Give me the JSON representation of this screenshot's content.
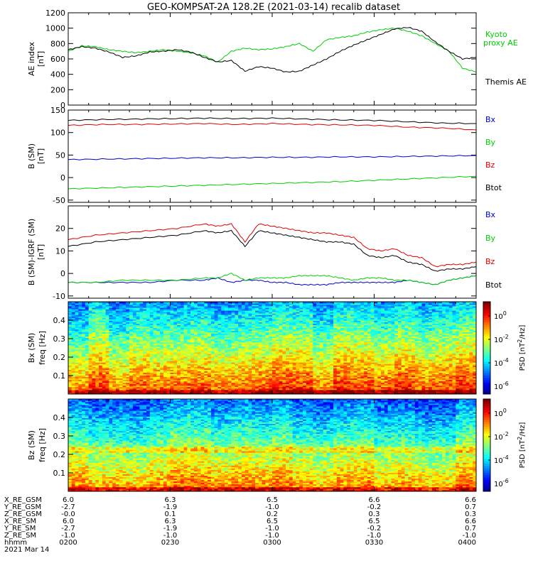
{
  "title": "GEO-KOMPSAT-2A 128.2E (2021-03-14) recalib dataset",
  "colors": {
    "black": "#000000",
    "red": "#e00000",
    "green": "#00d000",
    "blue": "#0000cc",
    "kyoto": "#00cc00"
  },
  "chart_data": [
    {
      "type": "line",
      "panel": "ae",
      "ylabel": "AE index",
      "yunit": "[nT]",
      "ylim": [
        0,
        1200
      ],
      "yticks": [
        0,
        200,
        400,
        600,
        800,
        1000,
        1200
      ],
      "x": [
        0,
        4,
        8,
        12,
        16,
        20,
        24,
        28,
        32,
        36,
        40,
        44,
        48,
        52,
        56,
        60,
        64,
        68,
        72,
        76,
        80,
        84,
        88,
        92,
        96,
        100,
        104,
        108,
        112,
        116,
        120
      ],
      "series": [
        {
          "name": "Kyoto proxy AE",
          "color": "#00cc00",
          "values": [
            700,
            770,
            760,
            720,
            700,
            680,
            700,
            720,
            700,
            680,
            640,
            560,
            700,
            740,
            720,
            730,
            760,
            800,
            700,
            850,
            880,
            900,
            950,
            980,
            1000,
            960,
            900,
            800,
            700,
            480,
            430
          ]
        },
        {
          "name": "Themis AE",
          "color": "#000000",
          "values": [
            720,
            760,
            740,
            690,
            620,
            640,
            690,
            700,
            720,
            690,
            620,
            560,
            580,
            440,
            500,
            480,
            430,
            440,
            520,
            600,
            700,
            780,
            850,
            920,
            990,
            1010,
            960,
            820,
            700,
            600,
            620
          ]
        }
      ]
    },
    {
      "type": "line",
      "panel": "b_sm",
      "ylabel": "B (SM)",
      "yunit": "[nT]",
      "ylim": [
        -55,
        150
      ],
      "yticks": [
        -50,
        0,
        50,
        100,
        150
      ],
      "x": [
        0,
        10,
        20,
        30,
        40,
        50,
        60,
        70,
        80,
        90,
        100,
        110,
        120
      ],
      "series": [
        {
          "name": "Bx",
          "color": "#0000cc",
          "values": [
            40,
            41,
            42,
            43,
            44,
            44,
            45,
            45,
            46,
            46,
            47,
            48,
            49
          ]
        },
        {
          "name": "By",
          "color": "#00d000",
          "values": [
            -25,
            -23,
            -21,
            -19,
            -17,
            -15,
            -13,
            -11,
            -9,
            -6,
            -3,
            0,
            3
          ]
        },
        {
          "name": "Bz",
          "color": "#e00000",
          "values": [
            116,
            118,
            118,
            119,
            120,
            118,
            120,
            118,
            117,
            116,
            112,
            110,
            106
          ]
        },
        {
          "name": "Btot",
          "color": "#000000",
          "values": [
            127,
            129,
            130,
            131,
            132,
            131,
            132,
            130,
            128,
            127,
            124,
            121,
            120
          ]
        }
      ]
    },
    {
      "type": "line",
      "panel": "b_igrf",
      "ylabel": "B (SM)-IGRF (SM)",
      "yunit": "[nT]",
      "ylim": [
        -11,
        30
      ],
      "yticks": [
        -10,
        0,
        10,
        20
      ],
      "x": [
        0,
        8,
        16,
        24,
        32,
        40,
        44,
        48,
        52,
        56,
        60,
        64,
        68,
        72,
        76,
        80,
        84,
        88,
        92,
        96,
        100,
        104,
        108,
        112,
        116,
        120
      ],
      "series": [
        {
          "name": "Bx",
          "color": "#0000cc",
          "values": [
            -4,
            -4,
            -4,
            -4,
            -3,
            -3,
            -2,
            -4,
            -3,
            -3,
            -4,
            -4,
            -5,
            -5,
            -5,
            -4,
            -4,
            -4,
            -4,
            -4,
            -3,
            -4,
            -5,
            -3,
            -2,
            -1
          ]
        },
        {
          "name": "By",
          "color": "#00d000",
          "values": [
            -4,
            -4,
            -3,
            -3,
            -3,
            -2,
            -2,
            0,
            -3,
            -2,
            -2,
            -2,
            -1,
            -1,
            -1,
            -2,
            -3,
            -2,
            -2,
            -3,
            -3,
            -4,
            -5,
            -3,
            -2,
            -1
          ]
        },
        {
          "name": "Bz",
          "color": "#e00000",
          "values": [
            15,
            17,
            18,
            19,
            20,
            22,
            21,
            22,
            14,
            22,
            21,
            20,
            19,
            18,
            18,
            17,
            16,
            11,
            10,
            11,
            8,
            7,
            3,
            4,
            4,
            5
          ]
        },
        {
          "name": "Btot",
          "color": "#000000",
          "values": [
            12,
            14,
            15,
            16,
            17,
            19,
            18,
            19,
            12,
            19,
            18,
            17,
            16,
            15,
            14,
            14,
            13,
            8,
            7,
            8,
            5,
            4,
            1,
            2,
            2,
            3
          ]
        }
      ]
    },
    {
      "type": "heatmap",
      "panel": "psd_bx",
      "ylabel": "Bx (SM)",
      "ylabel2": "freq [Hz]",
      "ylim": [
        0,
        0.5
      ],
      "yticks": [
        0.1,
        0.2,
        0.3,
        0.4
      ],
      "colorbar_label": "PSD [nT²/Hz]",
      "colorbar_ticks": [
        "10^0",
        "10^-2",
        "10^-4",
        "10^-6"
      ]
    },
    {
      "type": "heatmap",
      "panel": "psd_bz",
      "ylabel": "Bz (SM)",
      "ylabel2": "freq [Hz]",
      "ylim": [
        0,
        0.5
      ],
      "yticks": [
        0.1,
        0.2,
        0.3,
        0.4
      ],
      "colorbar_label": "PSD [nT²/Hz]",
      "colorbar_ticks": [
        "10^0",
        "10^-2",
        "10^-4",
        "10^-6"
      ]
    }
  ],
  "legend_ae": [
    "Kyoto",
    "proxy AE",
    "Themis AE"
  ],
  "legend_b": [
    "Bx",
    "By",
    "Bz",
    "Btot"
  ],
  "ephemeris": {
    "row_labels": [
      "X_RE_GSM",
      "Y_RE_GSM",
      "Z_RE_GSM",
      "X_RE_SM",
      "Y_RE_SM",
      "Z_RE_SM",
      "hhmm",
      "2021 Mar 14"
    ],
    "columns": [
      [
        "6.0",
        "-2.7",
        "-0.0",
        "6.0",
        "-2.7",
        "-1.0",
        "0200"
      ],
      [
        "6.3",
        "-1.9",
        "0.1",
        "6.3",
        "-1.9",
        "-1.0",
        "0230"
      ],
      [
        "6.5",
        "-1.0",
        "0.2",
        "6.5",
        "-1.0",
        "-1.0",
        "0300"
      ],
      [
        "6.6",
        "-0.2",
        "0.3",
        "6.5",
        "-0.2",
        "-1.0",
        "0330"
      ],
      [
        "6.6",
        "0.7",
        "0.3",
        "6.6",
        "0.7",
        "-1.0",
        "0400"
      ]
    ]
  }
}
